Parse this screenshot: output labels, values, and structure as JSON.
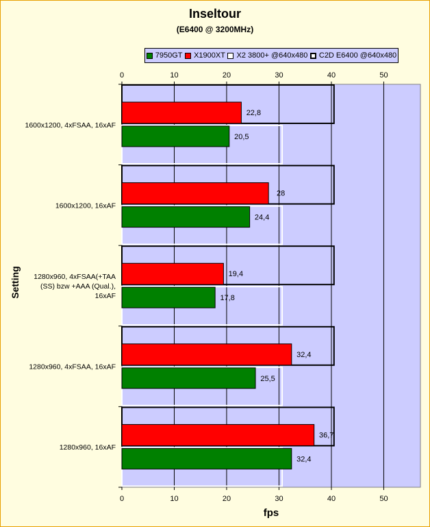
{
  "chart_data": {
    "type": "bar",
    "orientation": "horizontal",
    "title": "Inseltour",
    "subtitle": "(E6400 @ 3200MHz)",
    "xlabel": "fps",
    "ylabel": "Setting",
    "xlim": [
      0,
      57
    ],
    "xticks": [
      0,
      10,
      20,
      30,
      40,
      50
    ],
    "grid": true,
    "legend_position": "top",
    "categories": [
      "1600x1200, 4xFSAA, 16xAF",
      "1600x1200, 16xAF",
      "1280x960, 4xFSAA(+TAA (SS) bzw +AAA (Qual.), 16xAF",
      "1280x960, 4xFSAA, 16xAF",
      "1280x960, 16xAF"
    ],
    "category_lines": [
      [
        "1600x1200, 4xFSAA, 16xAF"
      ],
      [
        "1600x1200, 16xAF"
      ],
      [
        "1280x960, 4xFSAA(+TAA",
        "(SS) bzw +AAA (Qual.),",
        "16xAF"
      ],
      [
        "1280x960, 4xFSAA, 16xAF"
      ],
      [
        "1280x960, 16xAF"
      ]
    ],
    "series": [
      {
        "name": "7950GT",
        "color": "#008000",
        "style": "filled",
        "values": [
          20.5,
          24.4,
          17.8,
          25.5,
          32.4
        ],
        "labels": [
          "20,5",
          "24,4",
          "17,8",
          "25,5",
          "32,4"
        ]
      },
      {
        "name": "X1900XT",
        "color": "#ff0000",
        "style": "filled",
        "values": [
          22.8,
          28,
          19.4,
          32.4,
          36.7
        ],
        "labels": [
          "22,8",
          "28",
          "19,4",
          "32,4",
          "36,7"
        ]
      },
      {
        "name": "X2 3800+ @640x480",
        "color": "#ffffff",
        "style": "outline",
        "values": [
          30.6,
          30.6,
          30.6,
          30.6,
          30.6
        ]
      },
      {
        "name": "C2D E6400 @640x480",
        "color": "#000000",
        "style": "outline",
        "values": [
          40.5,
          40.5,
          40.5,
          40.5,
          40.5
        ]
      }
    ],
    "colors": {
      "plot_background": "#ccccff",
      "page_background": "#fffde0",
      "legend_background": "#ccccff",
      "border": "#e8a000"
    }
  }
}
